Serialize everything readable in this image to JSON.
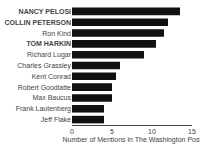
{
  "chart_data": {
    "type": "bar",
    "orientation": "horizontal",
    "xlabel": "Number of Mentions in The Washington Post",
    "categories": [
      "Jeff Flake",
      "Frank Lautenberg",
      "Max Baucus",
      "Robert Goodlatte",
      "Kent Conrad",
      "Charles Grassley",
      "Richard Lugar",
      "TOM HARKIN",
      "Ron Kind",
      "COLLIN PETERSON",
      "NANCY PELOSI"
    ],
    "values": [
      4,
      4,
      5,
      5,
      5.5,
      6,
      9,
      10.5,
      11.5,
      12,
      13.5
    ],
    "color": "#111111",
    "xlim": [
      0,
      15
    ],
    "xticks": [
      0,
      5,
      10,
      15
    ],
    "grid": false
  }
}
